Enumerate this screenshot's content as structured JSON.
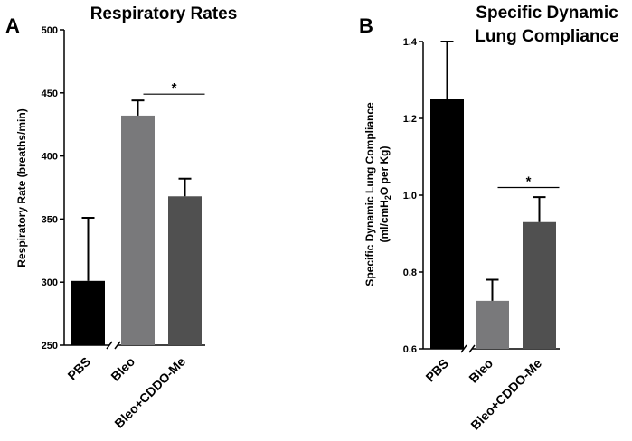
{
  "chart_data": [
    {
      "panel": "A",
      "type": "bar",
      "title": "Respiratory Rates",
      "ylabel": "Respiratory Rate (breaths/min)",
      "xlabel": "",
      "categories": [
        "PBS",
        "Bleo",
        "Bleo+CDDO-Me"
      ],
      "values": [
        301,
        432,
        368
      ],
      "errors": [
        50,
        12,
        14
      ],
      "colors": [
        "#000000",
        "#79797b",
        "#505050"
      ],
      "ylim": [
        250,
        500
      ],
      "yticks": [
        250,
        300,
        350,
        400,
        450,
        500
      ],
      "axis_break_after_category": 0,
      "significance": [
        {
          "from": 1,
          "to": 2,
          "label": "*",
          "y": 449
        }
      ]
    },
    {
      "panel": "B",
      "type": "bar",
      "title_lines": [
        "Specific Dynamic",
        "Lung Compliance"
      ],
      "ylabel_line1": "Specific Dynamic Lung Compliance",
      "ylabel_line2": "(ml/cmH2O per Kg)",
      "xlabel": "",
      "categories": [
        "PBS",
        "Bleo",
        "Bleo+CDDO-Me"
      ],
      "values": [
        1.25,
        0.725,
        0.93
      ],
      "errors": [
        0.15,
        0.055,
        0.065
      ],
      "colors": [
        "#000000",
        "#79797b",
        "#505050"
      ],
      "ylim": [
        0.6,
        1.4
      ],
      "yticks": [
        0.6,
        0.8,
        1.0,
        1.2,
        1.4
      ],
      "axis_break_after_category": 0,
      "significance": [
        {
          "from": 1,
          "to": 2,
          "label": "*",
          "y": 1.02
        }
      ]
    }
  ]
}
